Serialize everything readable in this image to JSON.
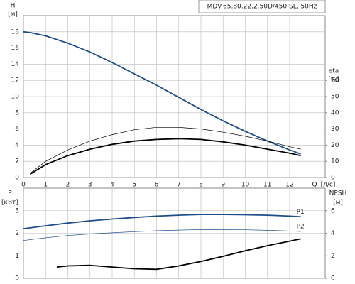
{
  "chart_data": [
    {
      "type": "line",
      "title": "MDV.65.80.22.2.50D/450.SL, 50Hz",
      "ylabel": "H",
      "yunit": "[м]",
      "y2label": "eta",
      "y2unit": "[%]",
      "xlabel": "Q",
      "xunit": "[л/с]",
      "x": [
        0,
        0.3,
        1,
        2,
        3,
        4,
        5,
        6,
        7,
        8,
        9,
        10,
        11,
        12,
        12.5
      ],
      "xlim": [
        0,
        13.6
      ],
      "xticks": [
        0,
        1,
        2,
        3,
        4,
        5,
        6,
        7,
        8,
        9,
        10,
        11,
        12
      ],
      "ylim": [
        0,
        20
      ],
      "yticks": [
        0,
        2,
        4,
        6,
        8,
        10,
        12,
        14,
        16,
        18
      ],
      "y2lim": [
        0,
        100
      ],
      "y2ticks": [
        0,
        10,
        20,
        30,
        40,
        50,
        60
      ],
      "grid": true,
      "series": [
        {
          "color": "#1f4e8c",
          "values": [
            18,
            17.9,
            17.5,
            16.6,
            15.5,
            14.2,
            12.8,
            11.4,
            9.9,
            8.4,
            7,
            5.7,
            4.5,
            3.4,
            2.9
          ]
        },
        {
          "color": "#000000",
          "axis": "y2",
          "values": [
            null,
            2,
            8,
            13.5,
            17.5,
            20.5,
            22.5,
            23.5,
            24,
            23.5,
            22,
            20,
            17.5,
            15,
            13.5
          ]
        },
        {
          "color": "#000000",
          "axis": "y2",
          "thin": true,
          "values": [
            null,
            2.5,
            10,
            17,
            22.5,
            26.5,
            29.5,
            31,
            31,
            30,
            28,
            25.5,
            22.5,
            19,
            17.5
          ]
        }
      ]
    },
    {
      "type": "line",
      "ylabel": "P",
      "yunit": "[кВт]",
      "y2label": "NPSH",
      "y2unit": "[м]",
      "x": [
        0,
        1,
        1.5,
        2,
        3,
        4,
        5,
        6,
        7,
        8,
        9,
        10,
        11,
        12,
        12.5
      ],
      "xlim": [
        0,
        13.6
      ],
      "xticks": [
        0,
        1,
        2,
        3,
        4,
        5,
        6,
        7,
        8,
        9,
        10,
        11,
        12
      ],
      "ylim": [
        0,
        4
      ],
      "yticks": [
        0,
        1,
        2,
        3
      ],
      "y2lim": [
        0,
        8
      ],
      "y2ticks": [
        0,
        2,
        4,
        6
      ],
      "grid": true,
      "series": [
        {
          "name": "P1",
          "color": "#1f4e8c",
          "values": [
            2.2,
            2.33,
            2.39,
            2.45,
            2.55,
            2.63,
            2.7,
            2.76,
            2.8,
            2.83,
            2.83,
            2.82,
            2.8,
            2.76,
            2.73
          ]
        },
        {
          "name": "P2",
          "color": "#1f4e8c",
          "thin": true,
          "values": [
            1.68,
            1.8,
            1.85,
            1.9,
            1.97,
            2.02,
            2.07,
            2.11,
            2.14,
            2.16,
            2.16,
            2.15,
            2.13,
            2.1,
            2.08
          ]
        },
        {
          "color": "#000000",
          "axis": "y2",
          "values": [
            null,
            null,
            1.0,
            1.1,
            1.15,
            1.0,
            0.85,
            0.8,
            1.1,
            1.5,
            1.95,
            2.45,
            2.9,
            3.3,
            3.5
          ]
        }
      ]
    }
  ]
}
